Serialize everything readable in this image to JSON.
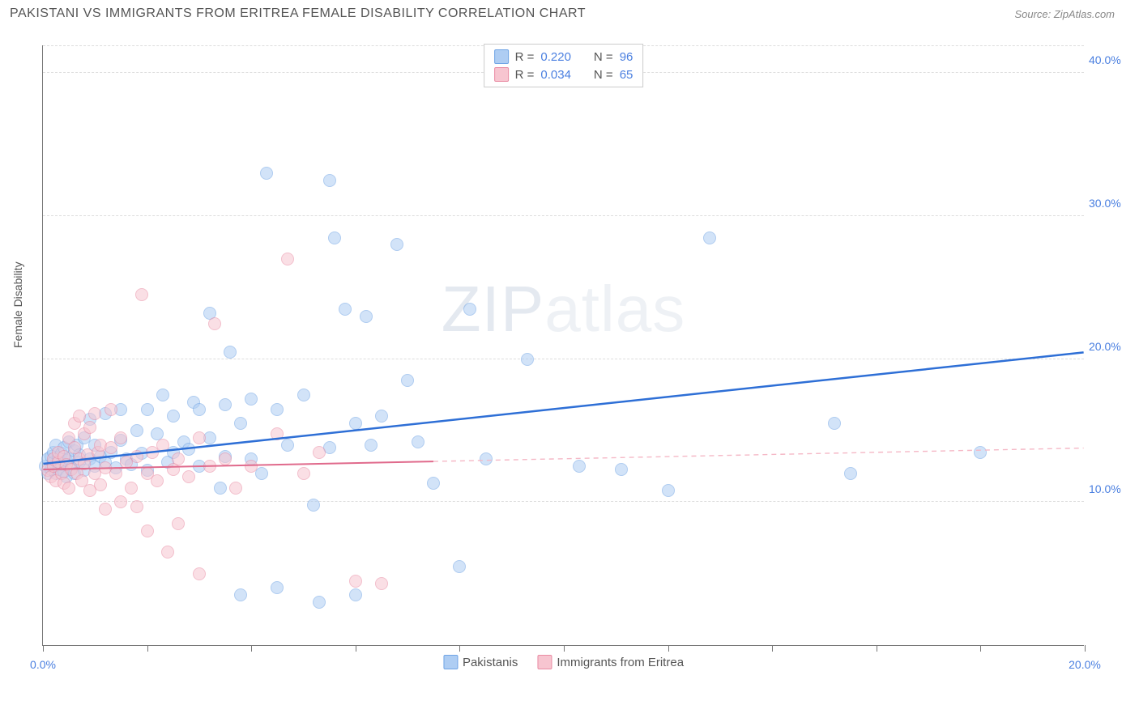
{
  "title": "PAKISTANI VS IMMIGRANTS FROM ERITREA FEMALE DISABILITY CORRELATION CHART",
  "source": "Source: ZipAtlas.com",
  "watermark": "ZIPatlas",
  "ylabel": "Female Disability",
  "chart": {
    "type": "scatter",
    "xlim": [
      0,
      20
    ],
    "ylim": [
      0,
      42
    ],
    "x_ticks": [
      0,
      2,
      4,
      6,
      8,
      10,
      12,
      14,
      16,
      18,
      20
    ],
    "x_tick_labels": {
      "0": "0.0%",
      "20": "20.0%"
    },
    "y_ticks": [
      10,
      20,
      30,
      40
    ],
    "y_tick_labels": {
      "10": "10.0%",
      "20": "20.0%",
      "30": "30.0%",
      "40": "40.0%"
    },
    "grid_color": "#dddddd",
    "background_color": "#ffffff",
    "axis_color": "#777777",
    "tick_label_color": "#4a7fe0",
    "marker_radius": 8,
    "series": [
      {
        "name": "Pakistanis",
        "fill": "#aecdf3",
        "stroke": "#6fa4e5",
        "fill_opacity": 0.55,
        "trend": {
          "x1": 0,
          "y1": 12.7,
          "x2": 20,
          "y2": 20.5,
          "solid_until_x": 20,
          "color": "#2e6fd6",
          "width": 2.5
        },
        "R": "0.220",
        "N": "96",
        "points": [
          [
            0.05,
            12.5
          ],
          [
            0.1,
            13.0
          ],
          [
            0.1,
            12.0
          ],
          [
            0.15,
            13.2
          ],
          [
            0.15,
            12.3
          ],
          [
            0.2,
            12.8
          ],
          [
            0.2,
            13.5
          ],
          [
            0.25,
            12.0
          ],
          [
            0.25,
            14.0
          ],
          [
            0.3,
            12.3
          ],
          [
            0.3,
            13.1
          ],
          [
            0.35,
            12.6
          ],
          [
            0.35,
            13.4
          ],
          [
            0.4,
            12.1
          ],
          [
            0.4,
            13.8
          ],
          [
            0.45,
            12.9
          ],
          [
            0.45,
            11.8
          ],
          [
            0.5,
            13.0
          ],
          [
            0.5,
            14.2
          ],
          [
            0.55,
            12.4
          ],
          [
            0.6,
            13.6
          ],
          [
            0.6,
            12.0
          ],
          [
            0.65,
            14.0
          ],
          [
            0.7,
            12.8
          ],
          [
            0.7,
            13.3
          ],
          [
            0.8,
            12.2
          ],
          [
            0.8,
            14.5
          ],
          [
            0.9,
            13.0
          ],
          [
            0.9,
            15.8
          ],
          [
            1.0,
            12.5
          ],
          [
            1.0,
            14.0
          ],
          [
            1.1,
            13.2
          ],
          [
            1.2,
            12.8
          ],
          [
            1.2,
            16.2
          ],
          [
            1.3,
            13.5
          ],
          [
            1.4,
            12.4
          ],
          [
            1.5,
            14.3
          ],
          [
            1.5,
            16.5
          ],
          [
            1.6,
            13.0
          ],
          [
            1.7,
            12.6
          ],
          [
            1.8,
            15.0
          ],
          [
            1.9,
            13.4
          ],
          [
            2.0,
            12.2
          ],
          [
            2.0,
            16.5
          ],
          [
            2.2,
            14.8
          ],
          [
            2.3,
            17.5
          ],
          [
            2.4,
            12.8
          ],
          [
            2.5,
            13.5
          ],
          [
            2.5,
            16.0
          ],
          [
            2.7,
            14.2
          ],
          [
            2.8,
            13.7
          ],
          [
            2.9,
            17.0
          ],
          [
            3.0,
            12.5
          ],
          [
            3.0,
            16.5
          ],
          [
            3.2,
            23.2
          ],
          [
            3.2,
            14.5
          ],
          [
            3.4,
            11.0
          ],
          [
            3.5,
            16.8
          ],
          [
            3.5,
            13.2
          ],
          [
            3.6,
            20.5
          ],
          [
            3.8,
            3.5
          ],
          [
            3.8,
            15.5
          ],
          [
            4.0,
            13.0
          ],
          [
            4.0,
            17.2
          ],
          [
            4.2,
            12.0
          ],
          [
            4.3,
            33.0
          ],
          [
            4.5,
            16.5
          ],
          [
            4.5,
            4.0
          ],
          [
            4.7,
            14.0
          ],
          [
            5.0,
            17.5
          ],
          [
            5.2,
            9.8
          ],
          [
            5.3,
            3.0
          ],
          [
            5.5,
            32.5
          ],
          [
            5.5,
            13.8
          ],
          [
            5.6,
            28.5
          ],
          [
            5.8,
            23.5
          ],
          [
            6.0,
            15.5
          ],
          [
            6.0,
            3.5
          ],
          [
            6.2,
            23.0
          ],
          [
            6.3,
            14.0
          ],
          [
            6.5,
            16.0
          ],
          [
            6.8,
            28.0
          ],
          [
            7.0,
            18.5
          ],
          [
            7.2,
            14.2
          ],
          [
            7.5,
            11.3
          ],
          [
            8.0,
            5.5
          ],
          [
            8.2,
            23.5
          ],
          [
            8.5,
            13.0
          ],
          [
            9.3,
            20.0
          ],
          [
            10.3,
            12.5
          ],
          [
            11.1,
            12.3
          ],
          [
            12.0,
            10.8
          ],
          [
            12.8,
            28.5
          ],
          [
            15.2,
            15.5
          ],
          [
            15.5,
            12.0
          ],
          [
            18.0,
            13.5
          ]
        ]
      },
      {
        "name": "Immigrants from Eritrea",
        "fill": "#f7c5d0",
        "stroke": "#e98ba3",
        "fill_opacity": 0.55,
        "trend": {
          "x1": 0,
          "y1": 12.3,
          "x2": 20,
          "y2": 13.8,
          "solid_until_x": 7.5,
          "color": "#e06a8c",
          "width": 2.0,
          "dash_color": "#f5b8c6"
        },
        "R": "0.034",
        "N": "65",
        "points": [
          [
            0.1,
            12.2
          ],
          [
            0.15,
            11.8
          ],
          [
            0.2,
            12.5
          ],
          [
            0.2,
            13.0
          ],
          [
            0.25,
            11.5
          ],
          [
            0.3,
            12.8
          ],
          [
            0.3,
            13.5
          ],
          [
            0.35,
            12.0
          ],
          [
            0.4,
            13.2
          ],
          [
            0.4,
            11.3
          ],
          [
            0.45,
            12.6
          ],
          [
            0.5,
            14.5
          ],
          [
            0.5,
            11.0
          ],
          [
            0.55,
            12.3
          ],
          [
            0.6,
            13.8
          ],
          [
            0.6,
            15.5
          ],
          [
            0.65,
            12.0
          ],
          [
            0.7,
            13.0
          ],
          [
            0.7,
            16.0
          ],
          [
            0.75,
            11.5
          ],
          [
            0.8,
            12.7
          ],
          [
            0.8,
            14.8
          ],
          [
            0.85,
            13.3
          ],
          [
            0.9,
            10.8
          ],
          [
            0.9,
            15.2
          ],
          [
            1.0,
            12.0
          ],
          [
            1.0,
            16.2
          ],
          [
            1.05,
            13.5
          ],
          [
            1.1,
            11.2
          ],
          [
            1.1,
            14.0
          ],
          [
            1.2,
            12.4
          ],
          [
            1.2,
            9.5
          ],
          [
            1.3,
            13.8
          ],
          [
            1.3,
            16.5
          ],
          [
            1.4,
            12.0
          ],
          [
            1.5,
            10.0
          ],
          [
            1.5,
            14.5
          ],
          [
            1.6,
            12.8
          ],
          [
            1.7,
            11.0
          ],
          [
            1.8,
            9.7
          ],
          [
            1.8,
            13.2
          ],
          [
            1.9,
            24.5
          ],
          [
            2.0,
            12.0
          ],
          [
            2.0,
            8.0
          ],
          [
            2.1,
            13.5
          ],
          [
            2.2,
            11.5
          ],
          [
            2.3,
            14.0
          ],
          [
            2.4,
            6.5
          ],
          [
            2.5,
            12.3
          ],
          [
            2.6,
            8.5
          ],
          [
            2.6,
            13.0
          ],
          [
            2.8,
            11.8
          ],
          [
            3.0,
            5.0
          ],
          [
            3.0,
            14.5
          ],
          [
            3.2,
            12.5
          ],
          [
            3.3,
            22.5
          ],
          [
            3.5,
            13.0
          ],
          [
            3.7,
            11.0
          ],
          [
            4.0,
            12.5
          ],
          [
            4.5,
            14.8
          ],
          [
            4.7,
            27.0
          ],
          [
            5.0,
            12.0
          ],
          [
            5.3,
            13.5
          ],
          [
            6.0,
            4.5
          ],
          [
            6.5,
            4.3
          ]
        ]
      }
    ]
  },
  "legend_bottom": [
    {
      "label": "Pakistanis",
      "swatch_fill": "#aecdf3",
      "swatch_stroke": "#6fa4e5"
    },
    {
      "label": "Immigrants from Eritrea",
      "swatch_fill": "#f7c5d0",
      "swatch_stroke": "#e98ba3"
    }
  ]
}
